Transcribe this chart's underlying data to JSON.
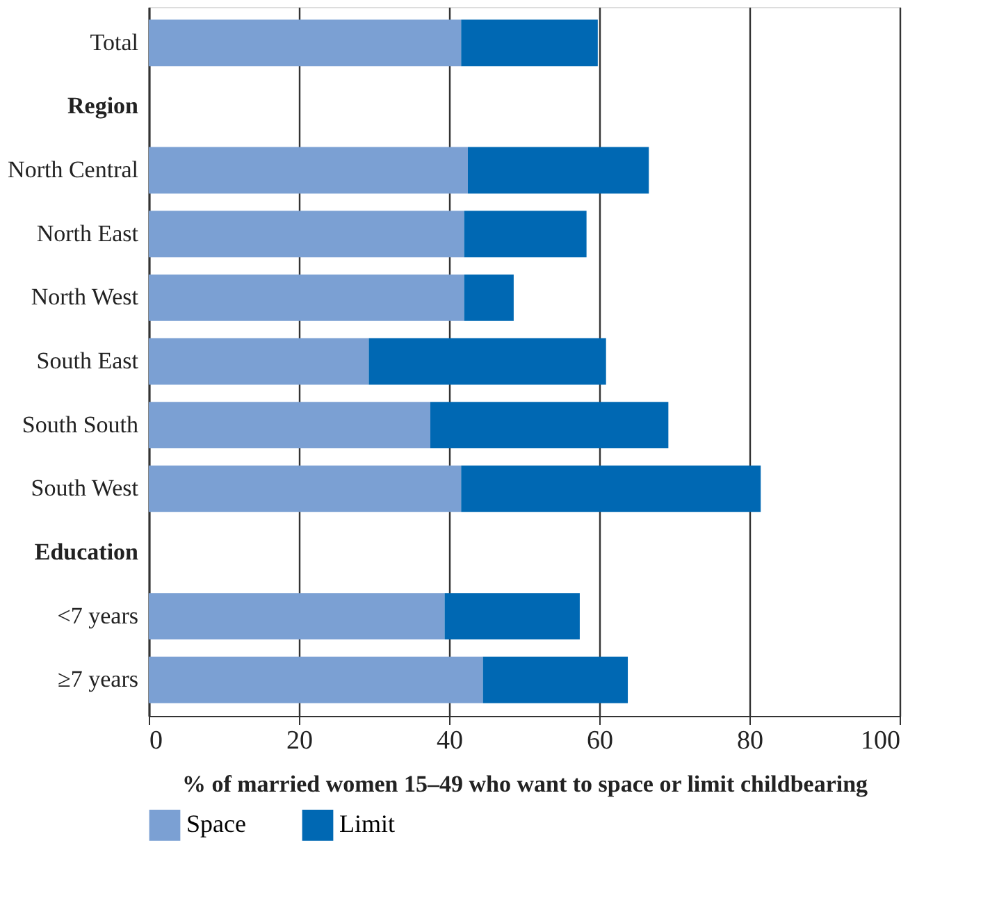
{
  "chart_data": {
    "type": "bar",
    "orientation": "horizontal",
    "stacked": true,
    "categories": [
      "Total",
      "Region",
      "North Central",
      "North East",
      "North West",
      "South East",
      "South South",
      "South West",
      "Education",
      "<7 years",
      "≥7 years"
    ],
    "series": [
      {
        "name": "Space",
        "color": "#7ba0d3",
        "values": [
          41.6,
          null,
          42.5,
          42.0,
          42.0,
          29.3,
          37.5,
          41.6,
          null,
          39.4,
          44.5
        ]
      },
      {
        "name": "Limit",
        "color": "#0068b3",
        "values": [
          18.2,
          null,
          24.1,
          16.3,
          6.6,
          31.6,
          31.7,
          39.9,
          null,
          18.0,
          19.3
        ]
      }
    ],
    "xlim": [
      0,
      100
    ],
    "xticks": [
      0,
      20,
      40,
      60,
      80,
      100
    ],
    "xlabel": "% of married women 15–49 who want to space or limit childbearing",
    "grid": "x",
    "legend": "bottom"
  }
}
